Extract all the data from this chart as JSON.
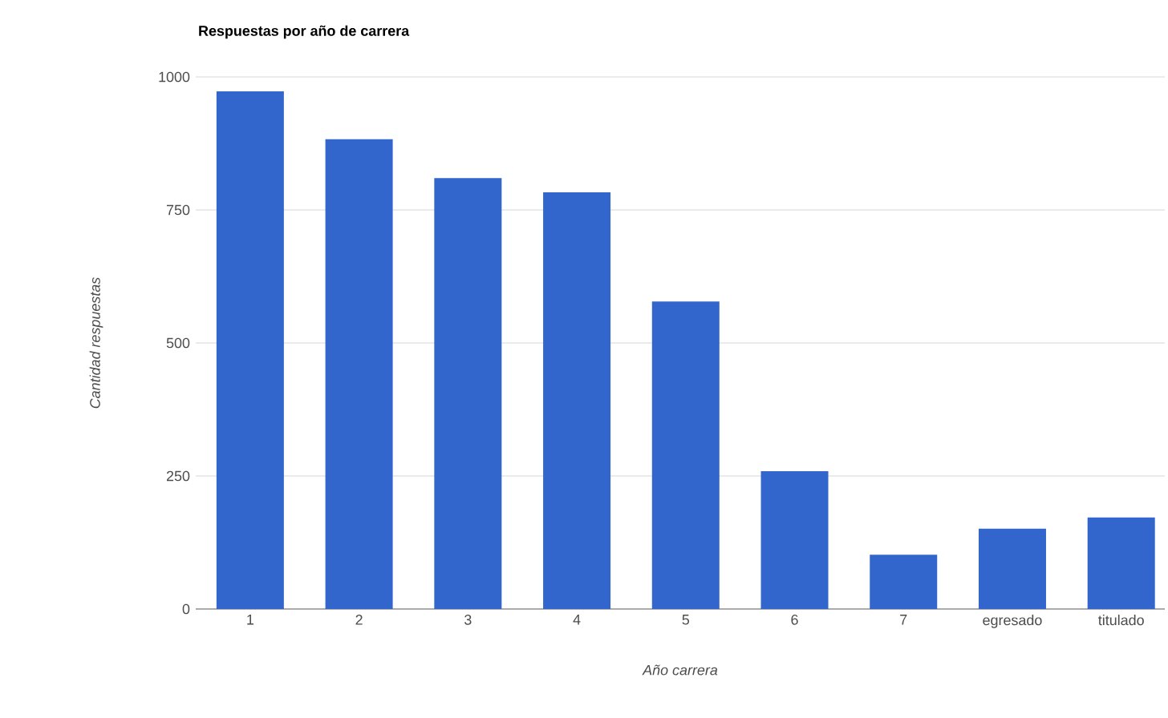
{
  "chart_data": {
    "type": "bar",
    "title": "Respuestas por año de carrera",
    "xlabel": "Año carrera",
    "ylabel": "Cantidad respuestas",
    "categories": [
      "1",
      "2",
      "3",
      "4",
      "5",
      "6",
      "7",
      "egresado",
      "titulado"
    ],
    "values": [
      973,
      883,
      810,
      783,
      578,
      259,
      102,
      151,
      172
    ],
    "color": "#3366cc",
    "ylim": [
      0,
      1000
    ],
    "yticks": [
      0,
      250,
      500,
      750,
      1000
    ],
    "grid": "y"
  }
}
